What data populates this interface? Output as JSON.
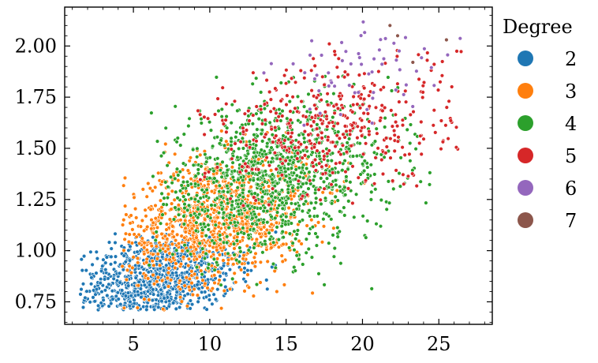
{
  "chart_data": {
    "type": "scatter",
    "title": "",
    "xlabel": "",
    "ylabel": "",
    "xlim": [
      0.5,
      28.5
    ],
    "ylim": [
      0.64,
      2.19
    ],
    "x_ticks": [
      5,
      10,
      15,
      20,
      25
    ],
    "x_tick_labels": [
      "5",
      "10",
      "15",
      "20",
      "25"
    ],
    "y_ticks": [
      0.75,
      1.0,
      1.25,
      1.5,
      1.75,
      2.0
    ],
    "y_tick_labels": [
      "0.75",
      "1.00",
      "1.25",
      "1.50",
      "1.75",
      "2.00"
    ],
    "grid": false,
    "legend": {
      "title": "Degree",
      "placement": "outside-right",
      "entries": [
        {
          "label": "2",
          "color": "#1f77b4"
        },
        {
          "label": "3",
          "color": "#ff7f0e"
        },
        {
          "label": "4",
          "color": "#2ca02c"
        },
        {
          "label": "5",
          "color": "#d62728"
        },
        {
          "label": "6",
          "color": "#9467bd"
        },
        {
          "label": "7",
          "color": "#8c564b"
        }
      ]
    },
    "series": [
      {
        "name": "2",
        "color": "#1f77b4",
        "count": 900,
        "x_center": 6.5,
        "x_spread": 2.6,
        "y_center": 0.85,
        "y_spread": 0.11,
        "x_range": [
          1.5,
          17
        ],
        "y_range": [
          0.71,
          1.29
        ]
      },
      {
        "name": "3",
        "color": "#ff7f0e",
        "count": 1100,
        "x_center": 10.5,
        "x_spread": 3.0,
        "y_center": 1.15,
        "y_spread": 0.15,
        "x_range": [
          4,
          21
        ],
        "y_range": [
          0.71,
          1.62
        ]
      },
      {
        "name": "4",
        "color": "#2ca02c",
        "count": 1150,
        "x_center": 14.0,
        "x_spread": 4.0,
        "y_center": 1.35,
        "y_spread": 0.18,
        "x_range": [
          6,
          25
        ],
        "y_range": [
          0.78,
          1.88
        ]
      },
      {
        "name": "5",
        "color": "#d62728",
        "count": 420,
        "x_center": 18.0,
        "x_spread": 4.0,
        "y_center": 1.6,
        "y_spread": 0.17,
        "x_range": [
          9,
          27.5
        ],
        "y_range": [
          1.2,
          2.05
        ]
      },
      {
        "name": "6",
        "color": "#9467bd",
        "count": 60,
        "x_center": 20.5,
        "x_spread": 3.3,
        "y_center": 1.9,
        "y_spread": 0.12,
        "x_range": [
          12,
          27
        ],
        "y_range": [
          1.6,
          2.12
        ]
      },
      {
        "name": "7",
        "color": "#8c564b",
        "count": 4,
        "points": [
          [
            21.8,
            2.1
          ],
          [
            22.3,
            2.05
          ],
          [
            23.3,
            1.92
          ],
          [
            25.5,
            2.03
          ]
        ]
      }
    ]
  }
}
